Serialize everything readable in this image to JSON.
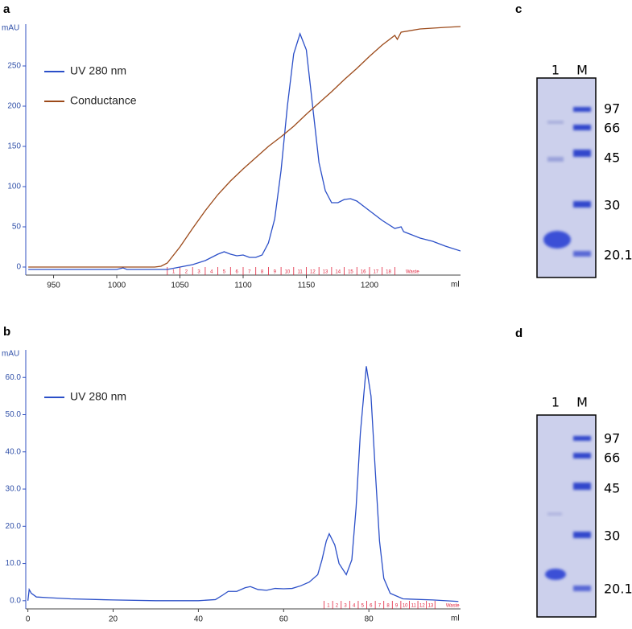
{
  "chart_data": [
    {
      "type": "line",
      "panel": "a",
      "y_label": "mAU",
      "x_label": "ml",
      "xlim": [
        928,
        1272
      ],
      "xticks": [
        950,
        1000,
        1050,
        1100,
        1150,
        1200
      ],
      "ylim": [
        -10,
        302
      ],
      "yticks": [
        0,
        50,
        100,
        150,
        200,
        250
      ],
      "legend": "upper left",
      "series": [
        {
          "name": "UV 280 nm",
          "color": "#2b4fc8",
          "x": [
            930,
            1000,
            1005,
            1008,
            1040,
            1050,
            1060,
            1070,
            1080,
            1085,
            1090,
            1095,
            1100,
            1105,
            1110,
            1115,
            1120,
            1125,
            1130,
            1135,
            1140,
            1145,
            1150,
            1155,
            1160,
            1165,
            1170,
            1175,
            1180,
            1185,
            1190,
            1195,
            1200,
            1210,
            1220,
            1225,
            1227,
            1240,
            1250,
            1260,
            1272
          ],
          "values": [
            -3,
            -3,
            -1,
            -3,
            -3,
            0,
            3,
            8,
            16,
            19,
            16,
            14,
            15,
            12,
            12,
            15,
            30,
            60,
            120,
            200,
            265,
            290,
            270,
            200,
            130,
            95,
            80,
            80,
            84,
            85,
            82,
            76,
            70,
            58,
            48,
            50,
            44,
            36,
            32,
            26,
            20
          ]
        },
        {
          "name": "Conductance",
          "color": "#9c4a1a",
          "x": [
            930,
            1030,
            1035,
            1040,
            1050,
            1060,
            1070,
            1080,
            1090,
            1100,
            1110,
            1120,
            1130,
            1140,
            1150,
            1160,
            1170,
            1180,
            1190,
            1200,
            1210,
            1220,
            1222,
            1225,
            1240,
            1260,
            1272
          ],
          "values": [
            0,
            0,
            1,
            5,
            25,
            48,
            70,
            90,
            107,
            122,
            136,
            150,
            162,
            175,
            190,
            204,
            218,
            233,
            247,
            262,
            276,
            288,
            283,
            292,
            296,
            298,
            299
          ]
        }
      ],
      "fractions": {
        "edges": [
          1040,
          1050,
          1060,
          1070,
          1080,
          1090,
          1100,
          1110,
          1120,
          1130,
          1140,
          1150,
          1160,
          1170,
          1180,
          1190,
          1200,
          1210,
          1220
        ],
        "labels": [
          "1",
          "2",
          "3",
          "4",
          "5",
          "6",
          "7",
          "8",
          "9",
          "10",
          "11",
          "12",
          "13",
          "14",
          "15",
          "16",
          "17",
          "18",
          "Waste"
        ]
      }
    },
    {
      "type": "line",
      "panel": "b",
      "y_label": "mAU",
      "x_label": "ml",
      "xlim": [
        -0.5,
        101.5
      ],
      "xticks": [
        0,
        20,
        40,
        60,
        80
      ],
      "ylim": [
        -2.2,
        67.4
      ],
      "yticks": [
        {
          "value": 0,
          "label": "0.0"
        },
        {
          "value": 10,
          "label": "10.0"
        },
        {
          "value": 20,
          "label": "20.0"
        },
        {
          "value": 30,
          "label": "30.0"
        },
        {
          "value": 40,
          "label": "40.0"
        },
        {
          "value": 50,
          "label": "50.0"
        },
        {
          "value": 60,
          "label": "60.0"
        }
      ],
      "legend": "upper left",
      "series": [
        {
          "name": "UV 280 nm",
          "color": "#2b4fc8",
          "x": [
            0,
            0.3,
            0.8,
            2,
            5,
            10,
            20,
            30,
            40,
            44,
            45.7,
            47,
            49,
            51,
            52.2,
            54,
            56,
            58,
            60,
            62,
            64,
            66,
            68,
            69,
            70,
            70.7,
            72,
            73,
            74.7,
            76,
            77,
            78,
            79.4,
            80.5,
            81.5,
            82.5,
            83.5,
            85,
            88,
            95,
            101
          ],
          "values": [
            0,
            3,
            2,
            1,
            0.8,
            0.5,
            0.2,
            0,
            0,
            0.3,
            1.5,
            2.5,
            2.5,
            3.5,
            3.8,
            3,
            2.8,
            3.3,
            3.2,
            3.3,
            4,
            5,
            7,
            11,
            16,
            18,
            15,
            10,
            7,
            11,
            25,
            45,
            63,
            55,
            35,
            16,
            6,
            2,
            0.5,
            0.2,
            -0.2
          ]
        }
      ],
      "fractions": {
        "edges": [
          69.5,
          71.5,
          73.5,
          75.5,
          77.5,
          79.5,
          81.5,
          83.5,
          85.5,
          87.5,
          89.5,
          91.5,
          93.5,
          95.5
        ],
        "labels": [
          "1",
          "2",
          "3",
          "4",
          "5",
          "6",
          "7",
          "8",
          "9",
          "10",
          "11",
          "12",
          "13",
          "Waste"
        ]
      }
    }
  ],
  "gels": [
    {
      "panel": "c",
      "lanes": [
        "1",
        "M"
      ],
      "markers": [
        "97",
        "66",
        "45",
        "30",
        "20.1"
      ]
    },
    {
      "panel": "d",
      "lanes": [
        "1",
        "M"
      ],
      "markers": [
        "97",
        "66",
        "45",
        "30",
        "20.1"
      ]
    }
  ]
}
